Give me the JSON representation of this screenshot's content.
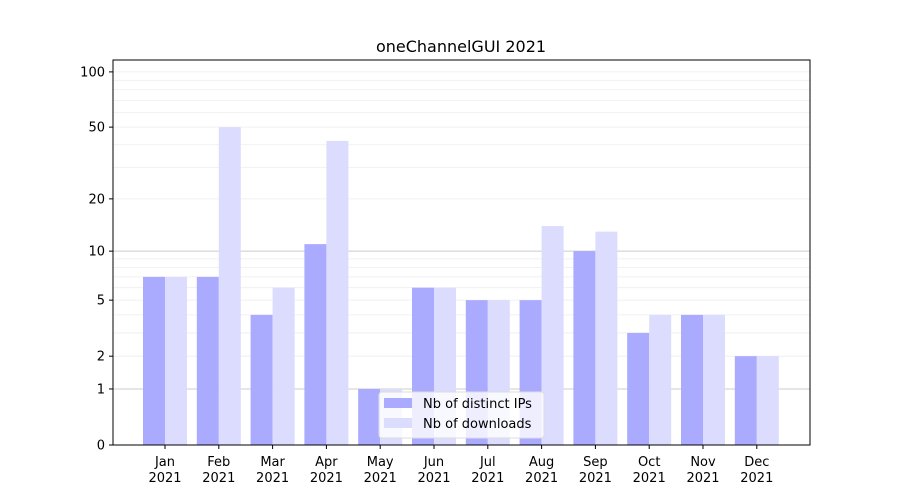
{
  "chart_data": {
    "type": "bar",
    "title": "oneChannelGUI 2021",
    "xlabel": "",
    "ylabel": "",
    "yscale": "log(y+1)",
    "ylim": [
      0,
      116
    ],
    "yticks": [
      0,
      1,
      2,
      5,
      10,
      20,
      50,
      100
    ],
    "grid": true,
    "legend_position": "bottom-center",
    "categories": [
      "Jan\n2021",
      "Feb\n2021",
      "Mar\n2021",
      "Apr\n2021",
      "May\n2021",
      "Jun\n2021",
      "Jul\n2021",
      "Aug\n2021",
      "Sep\n2021",
      "Oct\n2021",
      "Nov\n2021",
      "Dec\n2021"
    ],
    "series": [
      {
        "name": "Nb of distinct IPs",
        "color": "#aaaaff",
        "values": [
          7,
          7,
          4,
          11,
          1,
          6,
          5,
          5,
          10,
          3,
          4,
          2
        ]
      },
      {
        "name": "Nb of downloads",
        "color": "#dcdcff",
        "values": [
          7,
          50,
          6,
          42,
          1,
          6,
          5,
          14,
          13,
          4,
          4,
          2
        ]
      }
    ]
  }
}
